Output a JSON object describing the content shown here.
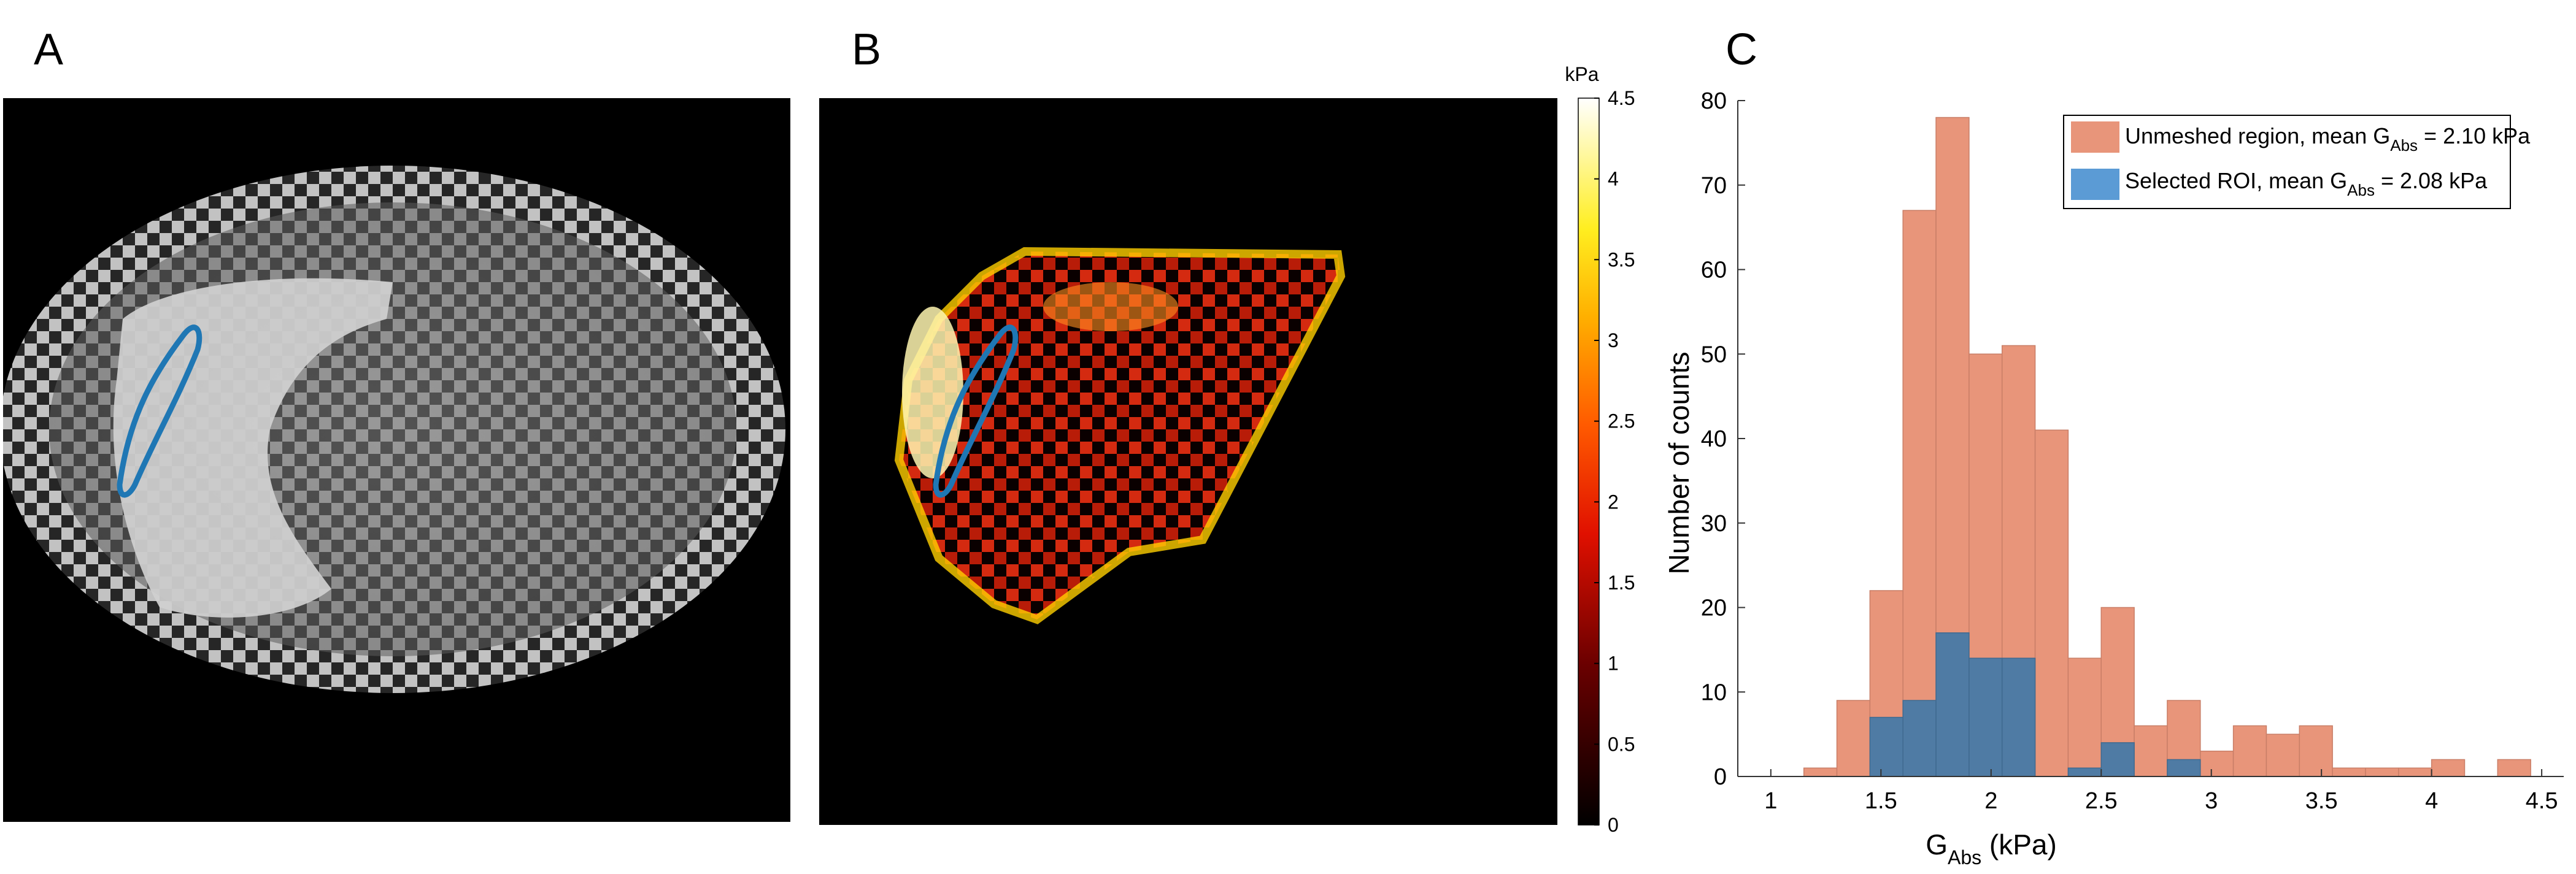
{
  "panels": {
    "a_label": "A",
    "b_label": "B",
    "c_label": "C"
  },
  "colorbar": {
    "unit": "kPa",
    "ticks": [
      "4.5",
      "4",
      "3.5",
      "3",
      "2.5",
      "2",
      "1.5",
      "1",
      "0.5",
      "0"
    ],
    "range": [
      0,
      4.5
    ]
  },
  "colors": {
    "unmeshed": "#E8957A",
    "roi": "#5B9BD5",
    "overlap": "#4F7BA4",
    "roi_contour": "#1F77B4"
  },
  "chart_data": {
    "type": "bar",
    "ylabel": "Number of counts",
    "xlabel_main": "G",
    "xlabel_sub": "Abs",
    "xlabel_unit": " (kPa)",
    "xlim": [
      0.85,
      4.6
    ],
    "ylim": [
      0,
      80
    ],
    "xticks": [
      1,
      1.5,
      2,
      2.5,
      3,
      3.5,
      4,
      4.5
    ],
    "yticks": [
      0,
      10,
      20,
      30,
      40,
      50,
      60,
      70,
      80
    ],
    "bin_edges": [
      1.15,
      1.3,
      1.45,
      1.6,
      1.75,
      1.9,
      2.05,
      2.2,
      2.35,
      2.5,
      2.65,
      2.8,
      2.95,
      3.1,
      3.25,
      3.4,
      3.55,
      3.7,
      3.85,
      4.0,
      4.15,
      4.3,
      4.45
    ],
    "series": [
      {
        "name_pre": "Unmeshed region, mean G",
        "name_sub": "Abs",
        "name_post": " = 2.10 kPa",
        "values": [
          1,
          9,
          22,
          67,
          78,
          50,
          51,
          41,
          14,
          20,
          6,
          9,
          3,
          6,
          5,
          6,
          1,
          1,
          1,
          2,
          0,
          2
        ]
      },
      {
        "name_pre": "Selected ROI, mean G",
        "name_sub": "Abs",
        "name_post": " = 2.08 kPa",
        "values": [
          0,
          0,
          7,
          9,
          17,
          14,
          14,
          0,
          1,
          4,
          0,
          2,
          0,
          0,
          0,
          0,
          0,
          0,
          0,
          0,
          0,
          0
        ]
      }
    ]
  }
}
